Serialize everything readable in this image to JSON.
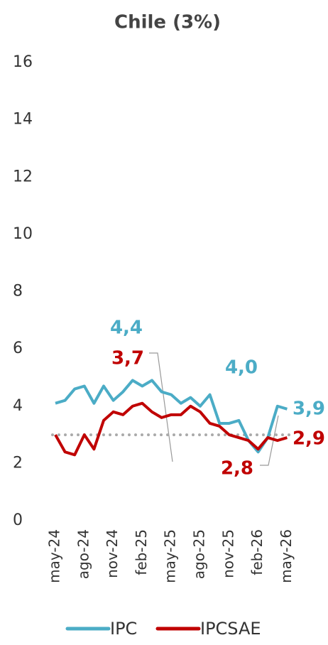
{
  "chart_data": {
    "type": "line",
    "title": "Chile (3%)",
    "categories": [
      "may-24",
      null,
      null,
      "ago-24",
      null,
      null,
      "nov-24",
      null,
      null,
      "feb-25",
      null,
      null,
      "may-25",
      null,
      null,
      "ago-25",
      null,
      null,
      "nov-25",
      null,
      null,
      "feb-26",
      null,
      null,
      "may-26"
    ],
    "series": [
      {
        "name": "IPC",
        "color": "#4bacc6",
        "values": [
          4.1,
          4.2,
          4.6,
          4.7,
          4.1,
          4.7,
          4.2,
          4.5,
          4.9,
          4.7,
          4.9,
          4.5,
          4.4,
          4.1,
          4.3,
          4.0,
          4.4,
          3.4,
          3.4,
          3.5,
          2.8,
          2.4,
          2.9,
          4.0,
          3.9
        ]
      },
      {
        "name": "IPCSAE",
        "color": "#c00000",
        "values": [
          3.0,
          2.4,
          2.3,
          3.0,
          2.5,
          3.5,
          3.8,
          3.7,
          4.0,
          4.1,
          3.8,
          3.6,
          3.7,
          3.7,
          4.0,
          3.8,
          3.4,
          3.3,
          3.0,
          2.9,
          2.8,
          2.5,
          2.9,
          2.8,
          2.9
        ]
      }
    ],
    "target": 3,
    "annotations": [
      {
        "text": "4,4",
        "color": "#4bacc6"
      },
      {
        "text": "3,7",
        "color": "#c00000"
      },
      {
        "text": "4,0",
        "color": "#4bacc6"
      },
      {
        "text": "3,9",
        "color": "#4bacc6"
      },
      {
        "text": "2,9",
        "color": "#c00000"
      },
      {
        "text": "2,8",
        "color": "#c00000"
      }
    ],
    "ylim": [
      0,
      16
    ],
    "yticks": [
      0,
      2,
      4,
      6,
      8,
      10,
      12,
      14,
      16
    ],
    "grid": false,
    "legend": "bottom"
  }
}
